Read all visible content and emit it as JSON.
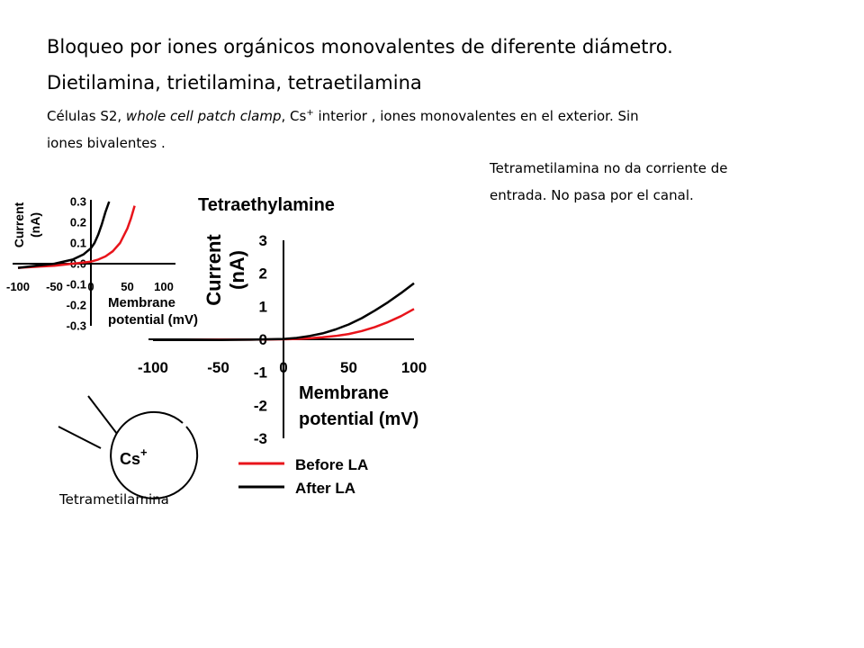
{
  "slide": {
    "title_line1": "Bloqueo por iones orgánicos monovalentes de diferente diámetro.",
    "title_line2": "Dietilamina,  trietilamina, tetraetilamina",
    "subtitle_part1": "Células  S2, ",
    "subtitle_italic": "whole cell patch clamp",
    "subtitle_part2": ", Cs",
    "subtitle_sup": "+",
    "subtitle_part3": " interior , iones monovalentes en el exterior. Sin",
    "subtitle_line2": "iones bivalentes .",
    "side_note_line1": "Tetrametilamina no da corriente de",
    "side_note_line2": "entrada. No pasa por el canal.",
    "cell_caption": "Tetrametilamina",
    "cell_label": "Cs",
    "cell_label_sup": "+"
  },
  "chart_data": [
    {
      "type": "line",
      "title": "Tetraethylamine",
      "xlabel_lines": [
        "Membrane",
        "potential (mV)"
      ],
      "ylabel_lines": [
        "Current",
        "(nA)"
      ],
      "xlim": [
        -100,
        100
      ],
      "ylim": [
        -3,
        3
      ],
      "xticks": [
        -100,
        -50,
        0,
        50,
        100
      ],
      "yticks": [
        -3,
        -2,
        -1,
        0,
        1,
        2,
        3
      ],
      "legend": [
        "Before LA",
        "After LA"
      ],
      "legend_position": "below",
      "grid": false,
      "series": [
        {
          "name": "Before LA",
          "color": "#e8141b",
          "x": [
            -100,
            -75,
            -50,
            -25,
            0,
            10,
            20,
            30,
            40,
            50,
            60,
            70,
            80,
            90,
            100
          ],
          "y": [
            -0.02,
            -0.02,
            -0.01,
            -0.01,
            0.0,
            0.01,
            0.03,
            0.06,
            0.1,
            0.16,
            0.25,
            0.37,
            0.52,
            0.7,
            0.92
          ]
        },
        {
          "name": "After LA",
          "color": "#000000",
          "x": [
            -100,
            -75,
            -50,
            -25,
            0,
            10,
            20,
            30,
            40,
            50,
            60,
            70,
            80,
            90,
            100
          ],
          "y": [
            -0.02,
            -0.02,
            -0.02,
            -0.01,
            0.01,
            0.04,
            0.1,
            0.18,
            0.3,
            0.45,
            0.64,
            0.87,
            1.12,
            1.4,
            1.7
          ]
        }
      ]
    },
    {
      "type": "line",
      "title": "",
      "xlabel_lines": [
        "Membrane",
        "potential (mV)"
      ],
      "ylabel_lines": [
        "Current",
        "(nA)"
      ],
      "xlim": [
        -100,
        100
      ],
      "ylim": [
        -0.3,
        0.3
      ],
      "xticks": [
        -100,
        -50,
        0,
        50,
        100
      ],
      "xtick_labels": [
        "-100",
        "-50",
        "0",
        "50",
        "100"
      ],
      "yticks": [
        0.3,
        0.2,
        0.1,
        0.0,
        -0.1,
        -0.2,
        -0.3
      ],
      "ytick_labels": [
        "0.3",
        "0.2",
        "0.1",
        "0.0",
        "-0.1",
        "-0.2",
        "-0.3"
      ],
      "grid": false,
      "series": [
        {
          "color": "#e8141b",
          "x": [
            -100,
            -75,
            -50,
            -25,
            0,
            10,
            20,
            30,
            40,
            50,
            55,
            60
          ],
          "y": [
            -0.02,
            -0.015,
            -0.01,
            0.0,
            0.01,
            0.02,
            0.035,
            0.06,
            0.1,
            0.17,
            0.22,
            0.28
          ]
        },
        {
          "color": "#000000",
          "x": [
            -100,
            -75,
            -50,
            -25,
            -10,
            0,
            5,
            10,
            15,
            20,
            25
          ],
          "y": [
            -0.02,
            -0.01,
            0.0,
            0.02,
            0.045,
            0.075,
            0.1,
            0.14,
            0.19,
            0.25,
            0.3
          ]
        }
      ]
    }
  ]
}
